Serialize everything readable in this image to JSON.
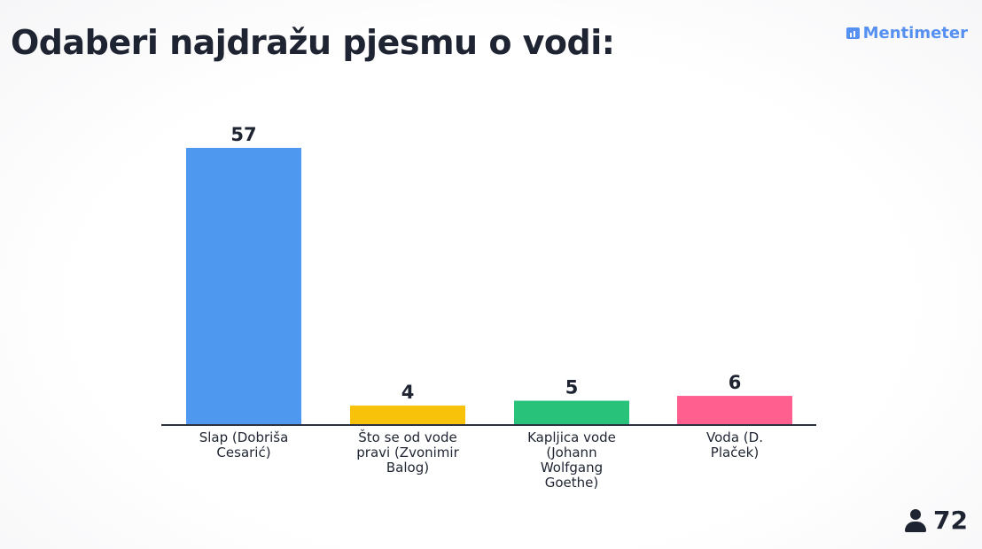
{
  "title": "Odaberi najdražu pjesmu o vodi:",
  "brand": {
    "name": "Mentimeter",
    "icon": "bar-chart-icon",
    "color": "#5690f0"
  },
  "participants": {
    "icon": "person-icon",
    "count": "72"
  },
  "chart_data": {
    "type": "bar",
    "title": "Odaberi najdražu pjesmu o vodi:",
    "categories": [
      "Slap (Dobriša Cesarić)",
      "Što se od vode pravi (Zvonimir Balog)",
      "Kapljica vode (Johann Wolfgang Goethe)",
      "Voda (D. Plaček)"
    ],
    "category_lines": [
      [
        "Slap (Dobriša",
        "Cesarić)"
      ],
      [
        "Što se od vode",
        "pravi (Zvonimir",
        "Balog)"
      ],
      [
        "Kapljica vode",
        "(Johann",
        "Wolfgang",
        "Goethe)"
      ],
      [
        "Voda (D.",
        "Plaček)"
      ]
    ],
    "values": [
      57,
      4,
      5,
      6
    ],
    "colors": [
      "#4f98f0",
      "#f9c20a",
      "#28c27a",
      "#ff5f8f"
    ],
    "ylim": [
      0,
      57
    ],
    "grid": false,
    "legend": "none"
  }
}
